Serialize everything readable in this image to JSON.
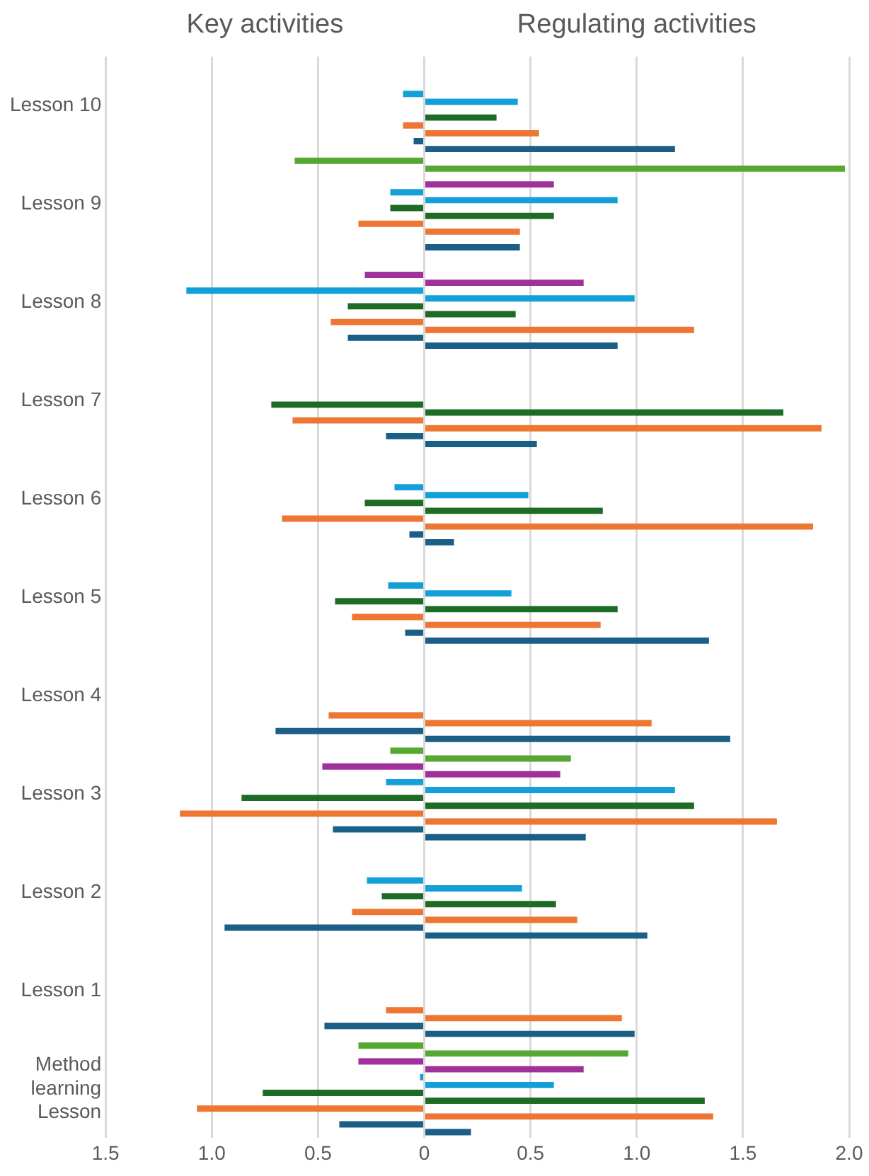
{
  "chart_data": {
    "type": "bar",
    "orientation": "horizontal",
    "annotations": [
      "Key activities",
      "Regulating activities"
    ],
    "categories": [
      "Lesson 10",
      "Lesson 9",
      "Lesson 8",
      "Lesson 7",
      "Lesson 6",
      "Lesson 5",
      "Lesson 4",
      "Lesson 3",
      "Lesson 2",
      "Lesson 1",
      "Method learning Lesson"
    ],
    "series": [
      {
        "color": "#57a832",
        "values": [
          null,
          -0.61,
          null,
          null,
          null,
          null,
          null,
          -0.16,
          null,
          null,
          -0.31
        ]
      },
      {
        "color": "#57a832",
        "values": [
          null,
          1.98,
          null,
          null,
          null,
          null,
          null,
          0.69,
          null,
          null,
          0.96
        ]
      },
      {
        "color": "#a0309a",
        "values": [
          null,
          null,
          -0.28,
          null,
          null,
          null,
          null,
          -0.48,
          null,
          null,
          -0.31
        ]
      },
      {
        "color": "#a0309a",
        "values": [
          null,
          0.61,
          0.75,
          null,
          null,
          null,
          null,
          0.64,
          null,
          null,
          0.75
        ]
      },
      {
        "color": "#13a0d8",
        "values": [
          -0.1,
          -0.16,
          -1.12,
          null,
          -0.14,
          -0.17,
          null,
          -0.18,
          -0.27,
          null,
          -0.02
        ]
      },
      {
        "color": "#13a0d8",
        "values": [
          0.44,
          0.91,
          0.99,
          null,
          0.49,
          0.41,
          null,
          1.18,
          0.46,
          null,
          0.61
        ]
      },
      {
        "color": "#1e6b25",
        "values": [
          null,
          -0.16,
          -0.36,
          -0.72,
          -0.28,
          -0.42,
          null,
          -0.86,
          -0.2,
          null,
          -0.76
        ]
      },
      {
        "color": "#1e6b25",
        "values": [
          0.34,
          0.61,
          0.43,
          1.69,
          0.84,
          0.91,
          null,
          1.27,
          0.62,
          null,
          1.32
        ]
      },
      {
        "color": "#ee7633",
        "values": [
          -0.1,
          -0.31,
          -0.44,
          -0.62,
          -0.67,
          -0.34,
          -0.45,
          -1.15,
          -0.34,
          -0.18,
          -1.07
        ]
      },
      {
        "color": "#ee7633",
        "values": [
          0.54,
          0.45,
          1.27,
          1.87,
          1.83,
          0.83,
          1.07,
          1.66,
          0.72,
          0.93,
          1.36
        ]
      },
      {
        "color": "#1b5e86",
        "values": [
          -0.05,
          null,
          -0.36,
          -0.18,
          -0.07,
          -0.09,
          -0.7,
          -0.43,
          -0.94,
          -0.47,
          -0.4
        ]
      },
      {
        "color": "#1b5e86",
        "values": [
          1.18,
          0.45,
          0.91,
          0.53,
          0.14,
          1.34,
          1.44,
          0.76,
          1.05,
          0.99,
          0.22
        ]
      }
    ],
    "xlim": [
      -1.5,
      2
    ],
    "xticks": [
      {
        "value": -1.5,
        "label": "1.5"
      },
      {
        "value": -1,
        "label": "1.0"
      },
      {
        "value": -0.5,
        "label": "0.5"
      },
      0,
      0.5,
      {
        "value": 1,
        "label": "1.0"
      },
      1.5,
      {
        "value": 2,
        "label": "2.0"
      }
    ],
    "grid": "x",
    "legend": false
  }
}
